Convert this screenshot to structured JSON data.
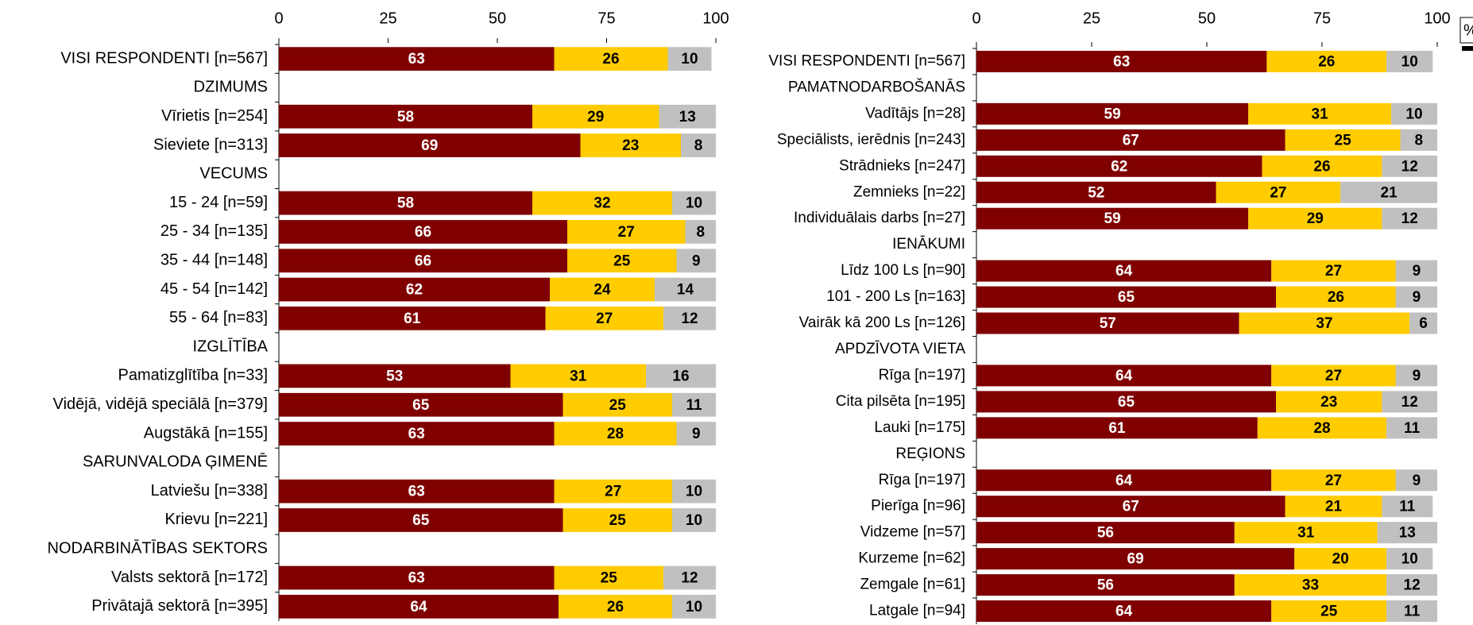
{
  "chart_data": [
    {
      "type": "bar",
      "orientation": "horizontal",
      "stacked": true,
      "categories": [
        "VISI RESPONDENTI [n=567]",
        "DZIMUMS",
        "Vīrietis [n=254]",
        "Sieviete [n=313]",
        "VECUMS",
        "15 - 24 [n=59]",
        "25 - 34 [n=135]",
        "35 - 44 [n=148]",
        "45 - 54 [n=142]",
        "55 - 64 [n=83]",
        "IZGLĪTĪBA",
        "Pamatizglītība [n=33]",
        "Vidējā, vidējā speciālā [n=379]",
        "Augstākā [n=155]",
        "SARUNVALODA ĢIMENĒ",
        "Latviešu [n=338]",
        "Krievu [n=221]",
        "NODARBINĀTĪBAS SEKTORS",
        "Valsts sektorā [n=172]",
        "Privātajā sektorā [n=395]"
      ],
      "series": [
        {
          "color": "#800000",
          "label_color": "#ffffff",
          "values": [
            63,
            null,
            58,
            69,
            null,
            58,
            66,
            66,
            62,
            61,
            null,
            53,
            65,
            63,
            null,
            63,
            65,
            null,
            63,
            64
          ]
        },
        {
          "color": "#ffcc00",
          "label_color": "#000000",
          "values": [
            26,
            null,
            29,
            23,
            null,
            32,
            27,
            25,
            24,
            27,
            null,
            31,
            25,
            28,
            null,
            27,
            25,
            null,
            25,
            26
          ]
        },
        {
          "color": "#c0c0c0",
          "label_color": "#000000",
          "values": [
            10,
            null,
            13,
            8,
            null,
            10,
            8,
            9,
            14,
            12,
            null,
            16,
            11,
            9,
            null,
            10,
            10,
            null,
            12,
            10
          ]
        }
      ],
      "xlim": [
        0,
        100
      ],
      "xticks": [
        0,
        25,
        50,
        75,
        100
      ]
    },
    {
      "type": "bar",
      "orientation": "horizontal",
      "stacked": true,
      "annotation": "%",
      "categories": [
        "VISI RESPONDENTI [n=567]",
        "PAMATNODARBOŠANĀS",
        "Vadītājs [n=28]",
        "Speciālists, ierēdnis [n=243]",
        "Strādnieks [n=247]",
        "Zemnieks [n=22]",
        "Individuālais darbs [n=27]",
        "IENĀKUMI",
        "Līdz 100 Ls [n=90]",
        "101 - 200 Ls [n=163]",
        "Vairāk kā 200 Ls [n=126]",
        "APDZĪVOTA VIETA",
        "Rīga [n=197]",
        "Cita pilsēta [n=195]",
        "Lauki [n=175]",
        "REĢIONS",
        "Rīga [n=197]",
        "Pierīga [n=96]",
        "Vidzeme [n=57]",
        "Kurzeme [n=62]",
        "Zemgale [n=61]",
        "Latgale [n=94]"
      ],
      "series": [
        {
          "color": "#800000",
          "label_color": "#ffffff",
          "values": [
            63,
            null,
            59,
            67,
            62,
            52,
            59,
            null,
            64,
            65,
            57,
            null,
            64,
            65,
            61,
            null,
            64,
            67,
            56,
            69,
            56,
            64
          ]
        },
        {
          "color": "#ffcc00",
          "label_color": "#000000",
          "values": [
            26,
            null,
            31,
            25,
            26,
            27,
            29,
            null,
            27,
            26,
            37,
            null,
            27,
            23,
            28,
            null,
            27,
            21,
            31,
            20,
            33,
            25
          ]
        },
        {
          "color": "#c0c0c0",
          "label_color": "#000000",
          "values": [
            10,
            null,
            10,
            8,
            12,
            21,
            12,
            null,
            9,
            9,
            6,
            null,
            9,
            12,
            11,
            null,
            9,
            11,
            13,
            10,
            12,
            11
          ]
        }
      ],
      "xlim": [
        0,
        100
      ],
      "xticks": [
        0,
        25,
        50,
        75,
        100
      ]
    }
  ]
}
